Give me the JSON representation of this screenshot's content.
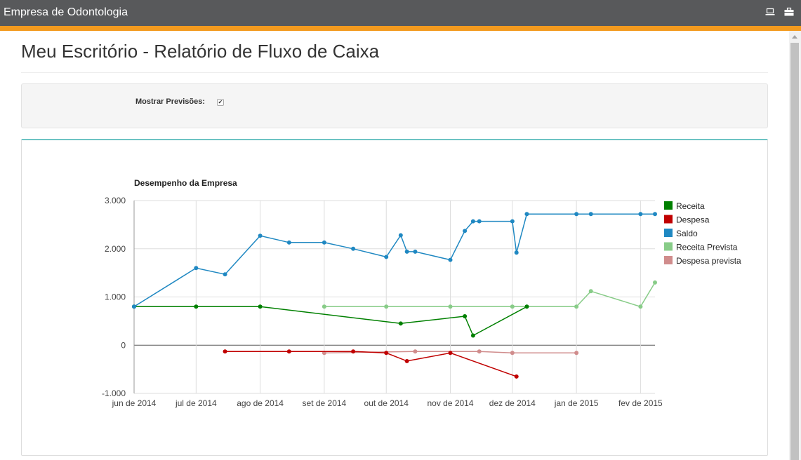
{
  "app": {
    "brand": "Empresa de Odontologia",
    "icons": [
      "laptop-icon",
      "briefcase-icon"
    ]
  },
  "page": {
    "title": "Meu Escritório - Relatório de Fluxo de Caixa"
  },
  "filters": {
    "show_forecast_label": "Mostrar Previsões:",
    "show_forecast_checked": true
  },
  "colors": {
    "topbar": "#58595b",
    "accent": "#f39a1e",
    "panel_border": "#6dc3c3"
  },
  "chart_data": {
    "type": "line",
    "title": "Desempenho da Empresa",
    "xlabel": "",
    "ylabel": "",
    "x_ticks": [
      "jun de 2014",
      "jul de 2014",
      "ago de 2014",
      "set de 2014",
      "out de 2014",
      "nov de 2014",
      "dez de 2014",
      "jan de 2015",
      "fev de 2015"
    ],
    "y_ticks": [
      "-1.000",
      "0",
      "1.000",
      "2.000",
      "3.000"
    ],
    "x_range": [
      "2014-06-01",
      "2015-02-08"
    ],
    "ylim": [
      -1000,
      3000
    ],
    "grid": true,
    "legend_position": "right",
    "series": [
      {
        "name": "Receita",
        "color": "#008000",
        "points": [
          [
            "2014-06-01",
            800
          ],
          [
            "2014-07-01",
            800
          ],
          [
            "2014-08-01",
            800
          ],
          [
            "2014-10-08",
            450
          ],
          [
            "2014-11-08",
            600
          ],
          [
            "2014-11-12",
            200
          ],
          [
            "2014-12-08",
            800
          ]
        ]
      },
      {
        "name": "Despesa",
        "color": "#c00000",
        "points": [
          [
            "2014-07-15",
            -130
          ],
          [
            "2014-08-15",
            -130
          ],
          [
            "2014-09-15",
            -130
          ],
          [
            "2014-10-01",
            -160
          ],
          [
            "2014-10-11",
            -330
          ],
          [
            "2014-11-01",
            -160
          ],
          [
            "2014-12-03",
            -650
          ]
        ]
      },
      {
        "name": "Saldo",
        "color": "#1f88c2",
        "points": [
          [
            "2014-06-01",
            800
          ],
          [
            "2014-07-01",
            1600
          ],
          [
            "2014-07-15",
            1470
          ],
          [
            "2014-08-01",
            2270
          ],
          [
            "2014-08-15",
            2130
          ],
          [
            "2014-09-01",
            2130
          ],
          [
            "2014-09-15",
            2000
          ],
          [
            "2014-10-01",
            1830
          ],
          [
            "2014-10-08",
            2280
          ],
          [
            "2014-10-11",
            1940
          ],
          [
            "2014-10-15",
            1940
          ],
          [
            "2014-11-01",
            1770
          ],
          [
            "2014-11-08",
            2370
          ],
          [
            "2014-11-12",
            2570
          ],
          [
            "2014-11-15",
            2570
          ],
          [
            "2014-12-01",
            2570
          ],
          [
            "2014-12-03",
            1920
          ],
          [
            "2014-12-08",
            2720
          ],
          [
            "2015-01-01",
            2720
          ],
          [
            "2015-01-08",
            2720
          ],
          [
            "2015-02-01",
            2720
          ],
          [
            "2015-02-08",
            2720
          ]
        ]
      },
      {
        "name": "Receita Prevista",
        "color": "#88cc88",
        "points": [
          [
            "2014-09-01",
            800
          ],
          [
            "2014-10-01",
            800
          ],
          [
            "2014-11-01",
            800
          ],
          [
            "2014-12-01",
            800
          ],
          [
            "2015-01-01",
            800
          ],
          [
            "2015-01-08",
            1120
          ],
          [
            "2015-02-01",
            800
          ],
          [
            "2015-02-08",
            1300
          ]
        ]
      },
      {
        "name": "Despesa prevista",
        "color": "#d08c8c",
        "points": [
          [
            "2014-09-01",
            -160
          ],
          [
            "2014-10-15",
            -130
          ],
          [
            "2014-11-15",
            -130
          ],
          [
            "2014-12-01",
            -160
          ],
          [
            "2015-01-01",
            -160
          ]
        ]
      }
    ]
  }
}
